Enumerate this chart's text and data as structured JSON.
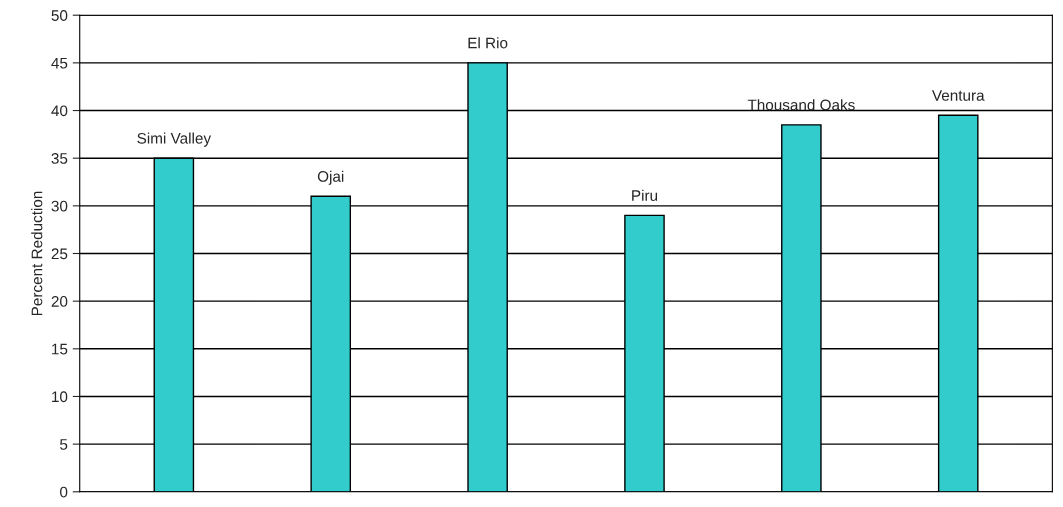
{
  "chart_data": {
    "type": "bar",
    "ylabel": "Percent Reduction",
    "categories": [
      "Simi Valley",
      "Ojai",
      "El Rio",
      "Piru",
      "Thousand Oaks",
      "Ventura"
    ],
    "values": [
      35,
      31,
      45,
      29,
      38.5,
      39.5
    ],
    "color": "#33cccc",
    "ylim": [
      0,
      50
    ],
    "yticks": [
      0,
      5,
      10,
      15,
      20,
      25,
      30,
      35,
      40,
      45,
      50
    ],
    "grid": "y"
  }
}
